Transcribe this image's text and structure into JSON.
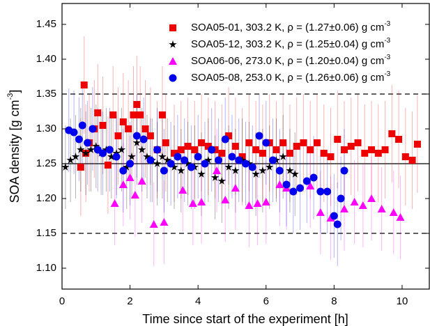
{
  "chart_data": {
    "type": "scatter",
    "x_label": "Time since start of the experiment [h]",
    "y_label": "SOA density [g cm",
    "y_label_sup": "-3",
    "y_label_end": "]",
    "legend_sup": "-3",
    "xlim": [
      0,
      10.8
    ],
    "xticks": [
      0,
      2,
      4,
      6,
      8,
      10
    ],
    "ylim": [
      1.07,
      1.48
    ],
    "yticks": [
      {
        "value": 1.1,
        "label": "1.10"
      },
      1.15,
      {
        "value": 1.2,
        "label": "1.20"
      },
      1.25,
      {
        "value": 1.3,
        "label": "1.30"
      },
      1.35,
      {
        "value": 1.4,
        "label": "1.40"
      },
      1.45
    ],
    "reference_lines": [
      {
        "value": 1.35,
        "style": "dashed"
      },
      {
        "value": 1.25,
        "style": "solid"
      },
      {
        "value": 1.15,
        "style": "dashed"
      }
    ],
    "legend": "top-right",
    "series": [
      {
        "name": "SOA05-01, 303.2 K, ρ = (1.27±0.06) g cm",
        "color": "#ee0000",
        "marker": "square",
        "error": 0.07,
        "x": [
          0.55,
          0.65,
          0.7,
          0.8,
          0.95,
          1.05,
          1.2,
          1.35,
          1.5,
          1.65,
          1.8,
          1.95,
          2.1,
          2.2,
          2.3,
          2.45,
          2.6,
          2.8,
          2.95,
          3.05,
          3.3,
          3.5,
          3.7,
          3.9,
          4.1,
          4.3,
          4.5,
          4.7,
          4.9,
          5.1,
          5.3,
          5.5,
          5.7,
          5.9,
          6.1,
          6.3,
          6.5,
          6.7,
          6.9,
          7.1,
          7.3,
          7.5,
          7.7,
          7.9,
          8.1,
          8.3,
          8.5,
          8.7,
          8.9,
          9.1,
          9.3,
          9.5,
          9.7,
          9.9,
          10.1,
          10.3,
          10.45
        ],
        "values": [
          1.245,
          1.363,
          1.265,
          1.28,
          1.3,
          1.323,
          1.305,
          1.248,
          1.32,
          1.29,
          1.31,
          1.3,
          1.32,
          1.335,
          1.32,
          1.3,
          1.29,
          1.27,
          1.32,
          1.28,
          1.265,
          1.27,
          1.275,
          1.27,
          1.28,
          1.275,
          1.27,
          1.265,
          1.29,
          1.275,
          1.26,
          1.28,
          1.27,
          1.265,
          1.28,
          1.27,
          1.28,
          1.265,
          1.275,
          1.28,
          1.27,
          1.28,
          1.265,
          1.26,
          1.285,
          1.27,
          1.275,
          1.28,
          1.265,
          1.27,
          1.265,
          1.27,
          1.293,
          1.285,
          1.26,
          1.255,
          1.278
        ]
      },
      {
        "name": "SOA05-12, 303.2 K, ρ = (1.25±0.04) g cm",
        "color": "#000000",
        "marker": "star",
        "error": 0.06,
        "x": [
          0.1,
          0.25,
          0.4,
          0.55,
          0.7,
          0.85,
          1.0,
          1.15,
          1.3,
          1.45,
          1.6,
          1.75,
          1.9,
          2.05,
          2.2,
          2.35,
          2.5,
          2.65,
          2.8,
          2.95,
          3.1,
          3.3,
          3.5,
          3.7,
          3.9,
          4.1,
          4.3,
          4.5,
          4.7,
          4.9,
          5.1,
          5.3,
          5.5,
          5.7,
          5.9,
          6.1,
          6.3,
          6.5,
          6.7,
          6.85
        ],
        "values": [
          1.245,
          1.255,
          1.26,
          1.27,
          1.265,
          1.27,
          1.275,
          1.265,
          1.27,
          1.26,
          1.265,
          1.27,
          1.245,
          1.26,
          1.28,
          1.27,
          1.26,
          1.255,
          1.25,
          1.26,
          1.255,
          1.245,
          1.24,
          1.25,
          1.245,
          1.235,
          1.255,
          1.23,
          1.225,
          1.245,
          1.24,
          1.255,
          1.25,
          1.235,
          1.24,
          1.245,
          1.255,
          1.26,
          1.24,
          1.235
        ]
      },
      {
        "name": "SOA06-06, 273.0 K, ρ = (1.20±0.04) g cm",
        "color": "#ff00ff",
        "marker": "triangle",
        "error": 0.06,
        "x": [
          1.55,
          1.8,
          2.0,
          2.15,
          2.35,
          2.7,
          3.0,
          3.55,
          3.85,
          4.1,
          4.55,
          4.8,
          5.1,
          5.5,
          5.75,
          6.0,
          6.4,
          6.6,
          7.3,
          7.6,
          7.9,
          8.3,
          8.6,
          8.85,
          9.1,
          9.4,
          9.75,
          9.95
        ],
        "values": [
          1.193,
          1.22,
          1.23,
          1.205,
          1.225,
          1.163,
          1.166,
          1.212,
          1.193,
          1.195,
          1.24,
          1.198,
          1.215,
          1.19,
          1.193,
          1.195,
          1.22,
          1.215,
          1.218,
          1.18,
          1.172,
          1.185,
          1.195,
          1.19,
          1.2,
          1.185,
          1.18,
          1.173
        ]
      },
      {
        "name": "SOA05-08, 253.0 K, ρ = (1.26±0.06) g cm",
        "color": "#0000ee",
        "marker": "circle",
        "error": 0.06,
        "x": [
          0.2,
          0.35,
          0.5,
          0.6,
          0.75,
          0.9,
          1.05,
          1.2,
          1.4,
          1.6,
          1.8,
          2.0,
          2.2,
          2.4,
          2.6,
          2.8,
          3.0,
          3.2,
          3.4,
          3.6,
          3.8,
          4.0,
          4.2,
          4.4,
          4.6,
          4.8,
          5.0,
          5.2,
          5.4,
          5.6,
          5.8,
          6.0,
          6.2,
          6.4,
          6.6,
          6.8,
          7.0,
          7.2,
          7.4,
          7.6,
          7.8,
          8.0,
          8.1,
          8.2,
          8.3
        ],
        "values": [
          1.298,
          1.295,
          1.285,
          1.305,
          1.28,
          1.3,
          1.27,
          1.265,
          1.27,
          1.26,
          1.24,
          1.25,
          1.29,
          1.285,
          1.255,
          1.27,
          1.24,
          1.25,
          1.26,
          1.255,
          1.245,
          1.26,
          1.25,
          1.27,
          1.255,
          1.285,
          1.26,
          1.255,
          1.25,
          1.245,
          1.29,
          1.28,
          1.255,
          1.24,
          1.22,
          1.21,
          1.215,
          1.225,
          1.23,
          1.21,
          1.21,
          1.175,
          1.163,
          1.2,
          1.24
        ]
      }
    ]
  }
}
